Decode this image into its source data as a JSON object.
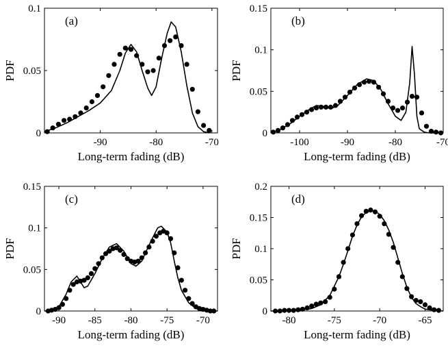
{
  "chart_data": [
    {
      "type": "line",
      "panel_label": "(a)",
      "xlabel": "Long-term fading (dB)",
      "ylabel": "PDF",
      "xlim": [
        -100,
        -69
      ],
      "ylim": [
        0,
        0.1
      ],
      "xticks": [
        -90,
        -80,
        -70
      ],
      "yticks": [
        0,
        0.05,
        0.1
      ],
      "ytick_labels": [
        "0",
        "0.05",
        "0.1"
      ],
      "grid": false,
      "series": [
        {
          "style": "solid-line",
          "x": [
            -100,
            -98,
            -96,
            -94,
            -92,
            -90,
            -88,
            -86.5,
            -85.5,
            -84.5,
            -83.5,
            -82.5,
            -81.5,
            -80.8,
            -80,
            -79,
            -78,
            -77.3,
            -76.5,
            -75.5,
            -74.5,
            -73.5,
            -72.5,
            -71.5,
            -70.5
          ],
          "y": [
            0.001,
            0.004,
            0.008,
            0.013,
            0.018,
            0.024,
            0.034,
            0.05,
            0.064,
            0.071,
            0.065,
            0.05,
            0.036,
            0.03,
            0.037,
            0.06,
            0.08,
            0.089,
            0.085,
            0.065,
            0.038,
            0.016,
            0.005,
            0.001,
            0
          ]
        },
        {
          "style": "dots",
          "x": [
            -99.5,
            -98.5,
            -97.5,
            -96.5,
            -95.5,
            -94.5,
            -93.5,
            -92.5,
            -91.5,
            -90.5,
            -89.5,
            -88.5,
            -87.5,
            -86.5,
            -85.5,
            -84.5,
            -83.5,
            -82.5,
            -81.5,
            -80.5,
            -79.5,
            -78.5,
            -77.5,
            -76.5,
            -75.5,
            -74.5,
            -73.5,
            -72.5,
            -71.5,
            -70.5
          ],
          "y": [
            0.001,
            0.004,
            0.007,
            0.01,
            0.011,
            0.013,
            0.016,
            0.02,
            0.025,
            0.03,
            0.037,
            0.046,
            0.055,
            0.063,
            0.068,
            0.067,
            0.062,
            0.055,
            0.049,
            0.05,
            0.06,
            0.07,
            0.074,
            0.077,
            0.07,
            0.055,
            0.035,
            0.017,
            0.006,
            0.002
          ]
        }
      ]
    },
    {
      "type": "line",
      "panel_label": "(b)",
      "xlabel": "Long-term fading (dB)",
      "ylabel": "PDF",
      "xlim": [
        -106,
        -70
      ],
      "ylim": [
        0,
        0.15
      ],
      "xticks": [
        -100,
        -90,
        -80,
        -70
      ],
      "yticks": [
        0,
        0.05,
        0.1,
        0.15
      ],
      "ytick_labels": [
        "0",
        "0.05",
        "0.1",
        "0.15"
      ],
      "grid": false,
      "series": [
        {
          "style": "solid-line",
          "x": [
            -106,
            -104,
            -102,
            -100,
            -98,
            -96.5,
            -95,
            -93.5,
            -92,
            -90,
            -88,
            -86,
            -84.5,
            -83,
            -81.5,
            -80,
            -78.8,
            -77.8,
            -77,
            -76.5,
            -76,
            -75.5,
            -75,
            -74,
            -73,
            -72,
            -71,
            -70
          ],
          "y": [
            0,
            0.004,
            0.011,
            0.02,
            0.028,
            0.033,
            0.032,
            0.029,
            0.033,
            0.045,
            0.058,
            0.065,
            0.063,
            0.052,
            0.035,
            0.02,
            0.015,
            0.025,
            0.06,
            0.104,
            0.07,
            0.02,
            0.005,
            0.001,
            0,
            0,
            0,
            0
          ]
        },
        {
          "style": "dots",
          "x": [
            -105.5,
            -104.5,
            -103.5,
            -102.5,
            -101.5,
            -100.5,
            -99.5,
            -98.5,
            -97.5,
            -96.5,
            -95.5,
            -94.5,
            -93.5,
            -92.5,
            -91.5,
            -90.5,
            -89.5,
            -88.5,
            -87.5,
            -86.5,
            -85.5,
            -84.5,
            -83.5,
            -82.5,
            -81.5,
            -80.5,
            -79.5,
            -78.5,
            -77.5,
            -76.5,
            -75.5,
            -74.5,
            -73.5,
            -72.5,
            -71.5,
            -70.5
          ],
          "y": [
            0.001,
            0.003,
            0.006,
            0.01,
            0.015,
            0.019,
            0.022,
            0.025,
            0.028,
            0.03,
            0.031,
            0.031,
            0.031,
            0.033,
            0.038,
            0.043,
            0.049,
            0.054,
            0.058,
            0.061,
            0.062,
            0.061,
            0.055,
            0.047,
            0.038,
            0.03,
            0.027,
            0.03,
            0.037,
            0.044,
            0.043,
            0.024,
            0.008,
            0.002,
            0.001,
            0
          ]
        }
      ]
    },
    {
      "type": "line",
      "panel_label": "(c)",
      "xlabel": "Long-term fading (dB)",
      "ylabel": "PDF",
      "xlim": [
        -92,
        -68
      ],
      "ylim": [
        0,
        0.15
      ],
      "xticks": [
        -90,
        -85,
        -80,
        -75,
        -70
      ],
      "yticks": [
        0,
        0.05,
        0.1,
        0.15
      ],
      "ytick_labels": [
        "0",
        "0.05",
        "0.1",
        "0.15"
      ],
      "grid": false,
      "series": [
        {
          "style": "solid-line",
          "x": [
            -92,
            -91,
            -90,
            -89,
            -88.3,
            -87.5,
            -87,
            -86.5,
            -86,
            -85,
            -84,
            -83,
            -82,
            -81,
            -80,
            -79.3,
            -78.5,
            -78,
            -77,
            -76.3,
            -75.8,
            -75,
            -74.5,
            -74,
            -73.5,
            -73,
            -72,
            -71,
            -70,
            -69,
            -68
          ],
          "y": [
            0,
            0.001,
            0.005,
            0.02,
            0.035,
            0.042,
            0.035,
            0.028,
            0.03,
            0.045,
            0.063,
            0.077,
            0.081,
            0.072,
            0.057,
            0.054,
            0.06,
            0.07,
            0.088,
            0.1,
            0.102,
            0.095,
            0.082,
            0.06,
            0.04,
            0.025,
            0.01,
            0.003,
            0.001,
            0,
            0
          ]
        },
        {
          "style": "dots",
          "x": [
            -91.5,
            -91,
            -90.5,
            -90,
            -89.5,
            -89,
            -88.5,
            -88,
            -87.5,
            -87,
            -86.5,
            -86,
            -85.5,
            -85,
            -84.5,
            -84,
            -83.5,
            -83,
            -82.5,
            -82,
            -81.5,
            -81,
            -80.5,
            -80,
            -79.5,
            -79,
            -78.5,
            -78,
            -77.5,
            -77,
            -76.5,
            -76,
            -75.5,
            -75,
            -74.5,
            -74,
            -73.5,
            -73,
            -72.5,
            -72,
            -71.5,
            -71,
            -70.5,
            -70,
            -69.5,
            -69,
            -68.5
          ],
          "y": [
            0,
            0.001,
            0.002,
            0.004,
            0.008,
            0.015,
            0.025,
            0.032,
            0.035,
            0.036,
            0.037,
            0.04,
            0.045,
            0.051,
            0.057,
            0.064,
            0.069,
            0.072,
            0.075,
            0.076,
            0.073,
            0.068,
            0.063,
            0.06,
            0.059,
            0.06,
            0.064,
            0.07,
            0.077,
            0.084,
            0.09,
            0.094,
            0.096,
            0.094,
            0.087,
            0.07,
            0.052,
            0.037,
            0.025,
            0.015,
            0.009,
            0.005,
            0.003,
            0.002,
            0.001,
            0,
            0
          ]
        }
      ]
    },
    {
      "type": "line",
      "panel_label": "(d)",
      "xlabel": "Long-term fading (dB)",
      "ylabel": "PDF",
      "xlim": [
        -82,
        -63
      ],
      "ylim": [
        0,
        0.2
      ],
      "xticks": [
        -80,
        -75,
        -70,
        -65
      ],
      "yticks": [
        0,
        0.05,
        0.1,
        0.15,
        0.2
      ],
      "ytick_labels": [
        "0",
        "0.05",
        "0.1",
        "0.15",
        "0.2"
      ],
      "grid": false,
      "series": [
        {
          "style": "solid-line",
          "x": [
            -82,
            -79,
            -77.5,
            -76.5,
            -75.5,
            -74.5,
            -74,
            -73.5,
            -73,
            -72.5,
            -72,
            -71.5,
            -71,
            -70.5,
            -70,
            -69.5,
            -69,
            -68.5,
            -68,
            -67.5,
            -67,
            -66.5,
            -66,
            -65.5,
            -65,
            -64,
            -63
          ],
          "y": [
            0,
            0.001,
            0.004,
            0.01,
            0.025,
            0.055,
            0.075,
            0.097,
            0.12,
            0.138,
            0.151,
            0.158,
            0.161,
            0.16,
            0.155,
            0.145,
            0.13,
            0.11,
            0.085,
            0.06,
            0.038,
            0.022,
            0.012,
            0.007,
            0.003,
            0.001,
            0
          ]
        },
        {
          "style": "dots",
          "x": [
            -81.5,
            -81,
            -80.5,
            -80,
            -79.5,
            -79,
            -78.5,
            -78,
            -77.5,
            -77,
            -76.5,
            -76,
            -75.5,
            -75,
            -74.5,
            -74,
            -73.5,
            -73,
            -72.5,
            -72,
            -71.5,
            -71,
            -70.5,
            -70,
            -69.5,
            -69,
            -68.5,
            -68,
            -67.5,
            -67,
            -66.5,
            -66,
            -65.5,
            -65,
            -64.5,
            -64,
            -63.5
          ],
          "y": [
            0,
            0,
            0.001,
            0.001,
            0.001,
            0.002,
            0.003,
            0.005,
            0.008,
            0.011,
            0.013,
            0.015,
            0.022,
            0.035,
            0.055,
            0.078,
            0.1,
            0.122,
            0.14,
            0.153,
            0.16,
            0.162,
            0.159,
            0.152,
            0.14,
            0.123,
            0.102,
            0.078,
            0.055,
            0.036,
            0.023,
            0.017,
            0.015,
            0.01,
            0.005,
            0.002,
            0.001
          ]
        }
      ]
    }
  ]
}
